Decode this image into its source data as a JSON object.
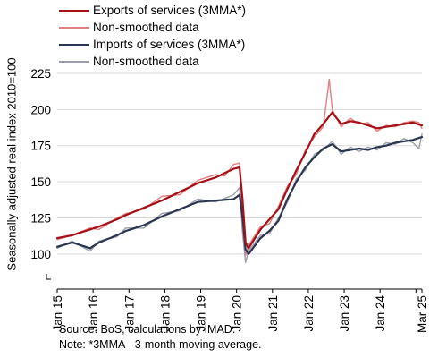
{
  "chart_data": {
    "type": "line",
    "ylabel": "Seasonally adjusted real index 2010=100",
    "ylim": [
      90,
      225
    ],
    "yticks": [
      100,
      125,
      150,
      175,
      200,
      225
    ],
    "x_tick_labels": [
      "Jan 15",
      "Jan 16",
      "Jan 17",
      "Jan 18",
      "Jan 19",
      "Jan 20",
      "Jan 21",
      "Jan 22",
      "Jan 23",
      "Jan 24",
      "Mar 25"
    ],
    "x_start": "2015-01",
    "x_end": "2025-03",
    "grid": "horizontal",
    "legend_position": "top-left",
    "series": [
      {
        "name": "Exports of services (3MMA*)",
        "color": "#a50f15",
        "width": 2.2,
        "anchors": [
          [
            "2015-01",
            111
          ],
          [
            "2015-06",
            113
          ],
          [
            "2015-12",
            117
          ],
          [
            "2016-03",
            119
          ],
          [
            "2016-09",
            124
          ],
          [
            "2016-12",
            127
          ],
          [
            "2017-06",
            132
          ],
          [
            "2017-12",
            137
          ],
          [
            "2018-06",
            143
          ],
          [
            "2018-12",
            149
          ],
          [
            "2019-06",
            153
          ],
          [
            "2019-09",
            156
          ],
          [
            "2019-12",
            159
          ],
          [
            "2020-02",
            160
          ],
          [
            "2020-03",
            138
          ],
          [
            "2020-04",
            108
          ],
          [
            "2020-05",
            104
          ],
          [
            "2020-09",
            117
          ],
          [
            "2020-12",
            124
          ],
          [
            "2021-03",
            131
          ],
          [
            "2021-06",
            145
          ],
          [
            "2021-09",
            158
          ],
          [
            "2021-12",
            170
          ],
          [
            "2022-03",
            183
          ],
          [
            "2022-06",
            190
          ],
          [
            "2022-09",
            198
          ],
          [
            "2022-12",
            190
          ],
          [
            "2023-03",
            192
          ],
          [
            "2023-06",
            191
          ],
          [
            "2023-09",
            189
          ],
          [
            "2023-12",
            187
          ],
          [
            "2024-03",
            188
          ],
          [
            "2024-06",
            189
          ],
          [
            "2024-09",
            190
          ],
          [
            "2024-12",
            191
          ],
          [
            "2025-03",
            189
          ]
        ]
      },
      {
        "name": "Non-smoothed data",
        "color": "#e08080",
        "width": 1.4,
        "anchors": [
          [
            "2015-01",
            110
          ],
          [
            "2015-06",
            113
          ],
          [
            "2015-12",
            118
          ],
          [
            "2016-03",
            117
          ],
          [
            "2016-09",
            125
          ],
          [
            "2016-12",
            128
          ],
          [
            "2017-06",
            131
          ],
          [
            "2017-12",
            140
          ],
          [
            "2018-06",
            141
          ],
          [
            "2018-12",
            151
          ],
          [
            "2019-06",
            155
          ],
          [
            "2019-09",
            154
          ],
          [
            "2019-12",
            162
          ],
          [
            "2020-02",
            163
          ],
          [
            "2020-03",
            125
          ],
          [
            "2020-04",
            99
          ],
          [
            "2020-05",
            106
          ],
          [
            "2020-09",
            119
          ],
          [
            "2020-12",
            121
          ],
          [
            "2021-03",
            133
          ],
          [
            "2021-06",
            147
          ],
          [
            "2021-09",
            155
          ],
          [
            "2021-12",
            172
          ],
          [
            "2022-03",
            181
          ],
          [
            "2022-06",
            188
          ],
          [
            "2022-08",
            221
          ],
          [
            "2022-09",
            200
          ],
          [
            "2022-12",
            188
          ],
          [
            "2023-03",
            194
          ],
          [
            "2023-06",
            190
          ],
          [
            "2023-09",
            191
          ],
          [
            "2023-12",
            185
          ],
          [
            "2024-03",
            189
          ],
          [
            "2024-06",
            188
          ],
          [
            "2024-09",
            191
          ],
          [
            "2024-12",
            192
          ],
          [
            "2025-02",
            191
          ],
          [
            "2025-03",
            187
          ]
        ]
      },
      {
        "name": "Imports of services (3MMA*)",
        "color": "#2a3550",
        "width": 2.2,
        "anchors": [
          [
            "2015-01",
            105
          ],
          [
            "2015-06",
            108
          ],
          [
            "2015-12",
            104
          ],
          [
            "2016-03",
            108
          ],
          [
            "2016-09",
            113
          ],
          [
            "2016-12",
            116
          ],
          [
            "2017-06",
            120
          ],
          [
            "2017-12",
            126
          ],
          [
            "2018-06",
            131
          ],
          [
            "2018-12",
            136
          ],
          [
            "2019-06",
            137
          ],
          [
            "2019-12",
            138
          ],
          [
            "2020-02",
            141
          ],
          [
            "2020-03",
            126
          ],
          [
            "2020-04",
            103
          ],
          [
            "2020-05",
            100
          ],
          [
            "2020-09",
            111
          ],
          [
            "2020-12",
            116
          ],
          [
            "2021-03",
            123
          ],
          [
            "2021-06",
            138
          ],
          [
            "2021-09",
            150
          ],
          [
            "2021-12",
            160
          ],
          [
            "2022-03",
            167
          ],
          [
            "2022-06",
            173
          ],
          [
            "2022-09",
            176
          ],
          [
            "2022-12",
            171
          ],
          [
            "2023-03",
            172
          ],
          [
            "2023-06",
            173
          ],
          [
            "2023-09",
            172
          ],
          [
            "2023-12",
            174
          ],
          [
            "2024-03",
            175
          ],
          [
            "2024-06",
            177
          ],
          [
            "2024-09",
            178
          ],
          [
            "2024-12",
            179
          ],
          [
            "2025-03",
            181
          ]
        ]
      },
      {
        "name": "Non-smoothed data",
        "color": "#9a9eab",
        "width": 1.4,
        "anchors": [
          [
            "2015-01",
            104
          ],
          [
            "2015-06",
            109
          ],
          [
            "2015-12",
            102
          ],
          [
            "2016-03",
            109
          ],
          [
            "2016-09",
            112
          ],
          [
            "2016-12",
            118
          ],
          [
            "2017-06",
            118
          ],
          [
            "2017-12",
            128
          ],
          [
            "2018-06",
            130
          ],
          [
            "2018-12",
            138
          ],
          [
            "2019-06",
            136
          ],
          [
            "2019-12",
            141
          ],
          [
            "2020-02",
            146
          ],
          [
            "2020-03",
            115
          ],
          [
            "2020-04",
            94
          ],
          [
            "2020-05",
            102
          ],
          [
            "2020-09",
            113
          ],
          [
            "2020-12",
            114
          ],
          [
            "2021-03",
            125
          ],
          [
            "2021-06",
            136
          ],
          [
            "2021-09",
            152
          ],
          [
            "2021-12",
            158
          ],
          [
            "2022-03",
            169
          ],
          [
            "2022-06",
            172
          ],
          [
            "2022-09",
            178
          ],
          [
            "2022-12",
            169
          ],
          [
            "2023-03",
            174
          ],
          [
            "2023-06",
            171
          ],
          [
            "2023-09",
            174
          ],
          [
            "2023-12",
            172
          ],
          [
            "2024-03",
            177
          ],
          [
            "2024-06",
            176
          ],
          [
            "2024-09",
            180
          ],
          [
            "2024-12",
            177
          ],
          [
            "2025-02",
            173
          ],
          [
            "2025-03",
            183
          ]
        ]
      }
    ]
  },
  "source_lines": [
    "Source: BoS, calculations by IMAD.",
    "Note: *3MMA - 3-month moving average."
  ]
}
